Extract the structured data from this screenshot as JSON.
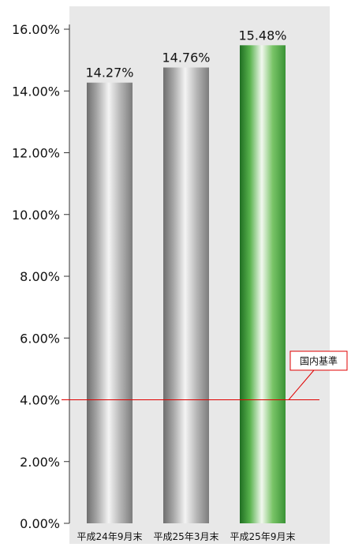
{
  "chart_data": {
    "type": "bar",
    "categories": [
      "平成24年9月末",
      "平成25年3月末",
      "平成25年9月末"
    ],
    "values": [
      14.27,
      14.76,
      15.48
    ],
    "data_labels": [
      "14.27%",
      "14.76%",
      "15.48%"
    ],
    "highlight_index": 2,
    "ylim": [
      0,
      16
    ],
    "yticks": [
      0,
      2,
      4,
      6,
      8,
      10,
      12,
      14,
      16
    ],
    "ytick_labels": [
      "0.00%",
      "2.00%",
      "4.00%",
      "6.00%",
      "8.00%",
      "10.00%",
      "12.00%",
      "14.00%",
      "16.00%"
    ],
    "reference_line": {
      "value": 4,
      "label": "国内基準",
      "color": "#e00000"
    },
    "grid": false,
    "colors": {
      "plot_background": "#e8e8e8",
      "bar": "#9a9a9a",
      "highlight_bar": "#4cb848",
      "axis": "#333333"
    }
  }
}
